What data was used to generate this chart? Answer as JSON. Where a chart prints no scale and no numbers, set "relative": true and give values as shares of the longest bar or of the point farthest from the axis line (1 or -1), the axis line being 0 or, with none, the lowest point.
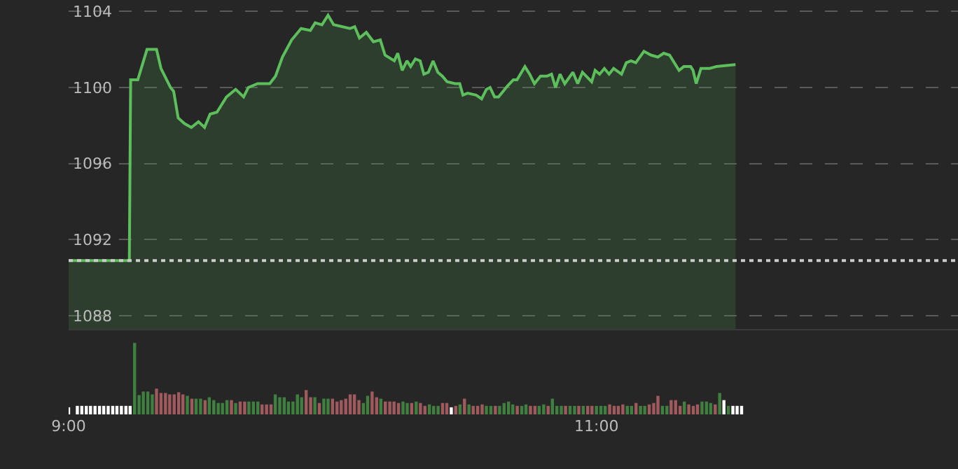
{
  "chart_data": [
    {
      "type": "area",
      "color": "#5cbf5c",
      "x": [
        9.0,
        9.23,
        9.235,
        9.262,
        9.297,
        9.333,
        9.35,
        9.386,
        9.398,
        9.415,
        9.439,
        9.465,
        9.492,
        9.515,
        9.536,
        9.562,
        9.598,
        9.633,
        9.663,
        9.681,
        9.716,
        9.762,
        9.784,
        9.81,
        9.845,
        9.881,
        9.916,
        9.934,
        9.96,
        9.983,
        10.004,
        10.066,
        10.084,
        10.102,
        10.128,
        10.155,
        10.181,
        10.199,
        10.234,
        10.247,
        10.264,
        10.282,
        10.296,
        10.314,
        10.332,
        10.346,
        10.363,
        10.381,
        10.399,
        10.416,
        10.434,
        10.464,
        10.482,
        10.494,
        10.512,
        10.544,
        10.565,
        10.583,
        10.597,
        10.614,
        10.629,
        10.664,
        10.685,
        10.699,
        10.729,
        10.747,
        10.765,
        10.788,
        10.813,
        10.83,
        10.845,
        10.862,
        10.88,
        10.911,
        10.929,
        10.947,
        10.982,
        10.995,
        11.012,
        11.03,
        11.048,
        11.065,
        11.095,
        11.113,
        11.131,
        11.149,
        11.18,
        11.207,
        11.233,
        11.255,
        11.277,
        11.313,
        11.331,
        11.357,
        11.366,
        11.378,
        11.396,
        11.428,
        11.455,
        11.527
      ],
      "values": [
        1090.9,
        1090.9,
        1100.4,
        1100.4,
        1102.0,
        1102.0,
        1101.0,
        1100.0,
        1099.8,
        1098.4,
        1098.1,
        1097.9,
        1098.2,
        1097.9,
        1098.6,
        1098.7,
        1099.5,
        1099.9,
        1099.5,
        1100.0,
        1100.2,
        1100.2,
        1100.6,
        1101.6,
        1102.5,
        1103.1,
        1103.0,
        1103.4,
        1103.3,
        1103.8,
        1103.3,
        1103.1,
        1103.2,
        1102.6,
        1102.9,
        1102.4,
        1102.5,
        1101.7,
        1101.4,
        1101.8,
        1100.9,
        1101.4,
        1101.1,
        1101.5,
        1101.4,
        1100.7,
        1100.8,
        1101.4,
        1100.8,
        1100.6,
        1100.3,
        1100.2,
        1100.2,
        1099.6,
        1099.7,
        1099.6,
        1099.4,
        1099.9,
        1100.0,
        1099.5,
        1099.5,
        1100.1,
        1100.4,
        1100.4,
        1101.1,
        1100.7,
        1100.2,
        1100.6,
        1100.6,
        1100.7,
        1100.0,
        1100.7,
        1100.2,
        1100.8,
        1100.2,
        1100.8,
        1100.3,
        1100.9,
        1100.7,
        1101.0,
        1100.7,
        1101.0,
        1100.7,
        1101.3,
        1101.4,
        1101.3,
        1101.9,
        1101.7,
        1101.6,
        1101.8,
        1101.7,
        1100.9,
        1101.1,
        1101.1,
        1100.9,
        1100.2,
        1101.0,
        1101.0,
        1101.1,
        1101.2
      ],
      "xlim": [
        9.0,
        12.37
      ],
      "ylim": [
        1087.3,
        1104.6
      ],
      "yticks": [
        1088,
        1092,
        1096,
        1100,
        1104
      ],
      "grid": "y",
      "tick_labels": "y",
      "ref_lines": [
        {
          "axis": "y",
          "value": 1090.9,
          "color": "#cccccc",
          "line_style": "dotted"
        }
      ]
    },
    {
      "type": "bar",
      "relative": true,
      "x": [
        9.0,
        9.033,
        9.05,
        9.067,
        9.083,
        9.1,
        9.117,
        9.133,
        9.15,
        9.167,
        9.183,
        9.2,
        9.217,
        9.233,
        9.25,
        9.267,
        9.283,
        9.3,
        9.317,
        9.333,
        9.35,
        9.367,
        9.383,
        9.4,
        9.417,
        9.433,
        9.45,
        9.467,
        9.483,
        9.5,
        9.517,
        9.533,
        9.55,
        9.567,
        9.583,
        9.6,
        9.617,
        9.633,
        9.65,
        9.667,
        9.683,
        9.7,
        9.717,
        9.733,
        9.75,
        9.767,
        9.783,
        9.8,
        9.817,
        9.833,
        9.85,
        9.867,
        9.883,
        9.9,
        9.917,
        9.933,
        9.95,
        9.967,
        9.983,
        10.0,
        10.017,
        10.033,
        10.05,
        10.067,
        10.083,
        10.1,
        10.117,
        10.133,
        10.15,
        10.167,
        10.183,
        10.2,
        10.217,
        10.233,
        10.25,
        10.267,
        10.283,
        10.3,
        10.317,
        10.333,
        10.35,
        10.367,
        10.383,
        10.4,
        10.417,
        10.433,
        10.45,
        10.467,
        10.483,
        10.5,
        10.517,
        10.533,
        10.55,
        10.567,
        10.583,
        10.6,
        10.617,
        10.633,
        10.65,
        10.667,
        10.683,
        10.7,
        10.717,
        10.733,
        10.75,
        10.767,
        10.783,
        10.8,
        10.817,
        10.833,
        10.85,
        10.867,
        10.883,
        10.9,
        10.917,
        10.933,
        10.95,
        10.967,
        10.983,
        11.0,
        11.017,
        11.033,
        11.05,
        11.067,
        11.083,
        11.1,
        11.117,
        11.133,
        11.15,
        11.167,
        11.183,
        11.2,
        11.217,
        11.233,
        11.25,
        11.267,
        11.283,
        11.3,
        11.317,
        11.333,
        11.35,
        11.367,
        11.383,
        11.4,
        11.417,
        11.433,
        11.45,
        11.467,
        11.483,
        11.5,
        11.517,
        11.533,
        11.55
      ],
      "values": [
        0.1,
        0.12,
        0.12,
        0.12,
        0.12,
        0.12,
        0.12,
        0.12,
        0.12,
        0.12,
        0.12,
        0.12,
        0.12,
        0.12,
        1.0,
        0.27,
        0.32,
        0.32,
        0.28,
        0.36,
        0.3,
        0.3,
        0.28,
        0.28,
        0.31,
        0.28,
        0.26,
        0.22,
        0.22,
        0.22,
        0.2,
        0.24,
        0.2,
        0.16,
        0.16,
        0.2,
        0.2,
        0.16,
        0.18,
        0.18,
        0.18,
        0.18,
        0.18,
        0.14,
        0.14,
        0.14,
        0.28,
        0.24,
        0.24,
        0.18,
        0.18,
        0.28,
        0.24,
        0.34,
        0.24,
        0.24,
        0.16,
        0.22,
        0.22,
        0.22,
        0.18,
        0.2,
        0.22,
        0.28,
        0.28,
        0.2,
        0.16,
        0.26,
        0.32,
        0.24,
        0.22,
        0.18,
        0.18,
        0.18,
        0.16,
        0.18,
        0.16,
        0.16,
        0.18,
        0.16,
        0.12,
        0.14,
        0.12,
        0.12,
        0.16,
        0.16,
        0.1,
        0.12,
        0.14,
        0.22,
        0.14,
        0.12,
        0.12,
        0.14,
        0.12,
        0.12,
        0.12,
        0.12,
        0.16,
        0.18,
        0.14,
        0.12,
        0.12,
        0.14,
        0.12,
        0.12,
        0.12,
        0.14,
        0.12,
        0.22,
        0.12,
        0.12,
        0.12,
        0.12,
        0.12,
        0.12,
        0.12,
        0.12,
        0.12,
        0.12,
        0.12,
        0.12,
        0.14,
        0.12,
        0.12,
        0.14,
        0.12,
        0.12,
        0.16,
        0.12,
        0.12,
        0.14,
        0.16,
        0.26,
        0.12,
        0.12,
        0.2,
        0.2,
        0.12,
        0.18,
        0.14,
        0.12,
        0.14,
        0.18,
        0.18,
        0.16,
        0.14,
        0.3,
        0.2,
        0.12,
        0.12,
        0.12,
        0.12
      ],
      "colors": [
        "#ffffff",
        "#ffffff",
        "#ffffff",
        "#ffffff",
        "#ffffff",
        "#ffffff",
        "#ffffff",
        "#ffffff",
        "#ffffff",
        "#ffffff",
        "#ffffff",
        "#ffffff",
        "#ffffff",
        "#ffffff",
        "#3f7f3f",
        "#3f7f3f",
        "#3f7f3f",
        "#3f7f3f",
        "#3f7f3f",
        "#a05a5e",
        "#a05a5e",
        "#a05a5e",
        "#a05a5e",
        "#a05a5e",
        "#a05a5e",
        "#a05a5e",
        "#3f7f3f",
        "#a05a5e",
        "#3f7f3f",
        "#3f7f3f",
        "#a05a5e",
        "#3f7f3f",
        "#3f7f3f",
        "#3f7f3f",
        "#3f7f3f",
        "#3f7f3f",
        "#a05a5e",
        "#3f7f3f",
        "#a05a5e",
        "#a05a5e",
        "#3f7f3f",
        "#3f7f3f",
        "#3f7f3f",
        "#a05a5e",
        "#a05a5e",
        "#a05a5e",
        "#3f7f3f",
        "#3f7f3f",
        "#3f7f3f",
        "#3f7f3f",
        "#3f7f3f",
        "#3f7f3f",
        "#3f7f3f",
        "#a05a5e",
        "#a05a5e",
        "#3f7f3f",
        "#a05a5e",
        "#3f7f3f",
        "#3f7f3f",
        "#a05a5e",
        "#a05a5e",
        "#a05a5e",
        "#a05a5e",
        "#a05a5e",
        "#a05a5e",
        "#a05a5e",
        "#3f7f3f",
        "#3f7f3f",
        "#a05a5e",
        "#a05a5e",
        "#3f7f3f",
        "#a05a5e",
        "#a05a5e",
        "#a05a5e",
        "#a05a5e",
        "#3f7f3f",
        "#3f7f3f",
        "#a05a5e",
        "#3f7f3f",
        "#a05a5e",
        "#a05a5e",
        "#3f7f3f",
        "#3f7f3f",
        "#3f7f3f",
        "#a05a5e",
        "#a05a5e",
        "#ffffff",
        "#a05a5e",
        "#3f7f3f",
        "#a05a5e",
        "#3f7f3f",
        "#a05a5e",
        "#a05a5e",
        "#a05a5e",
        "#3f7f3f",
        "#3f7f3f",
        "#a05a5e",
        "#3f7f3f",
        "#3f7f3f",
        "#3f7f3f",
        "#3f7f3f",
        "#a05a5e",
        "#3f7f3f",
        "#3f7f3f",
        "#a05a5e",
        "#a05a5e",
        "#3f7f3f",
        "#3f7f3f",
        "#a05a5e",
        "#3f7f3f",
        "#3f7f3f",
        "#3f7f3f",
        "#a05a5e",
        "#3f7f3f",
        "#3f7f3f",
        "#a05a5e",
        "#3f7f3f",
        "#a05a5e",
        "#a05a5e",
        "#3f7f3f",
        "#3f7f3f",
        "#3f7f3f",
        "#a05a5e",
        "#a05a5e",
        "#a05a5e",
        "#a05a5e",
        "#3f7f3f",
        "#3f7f3f",
        "#a05a5e",
        "#3f7f3f",
        "#3f7f3f",
        "#a05a5e",
        "#a05a5e",
        "#a05a5e",
        "#3f7f3f",
        "#3f7f3f",
        "#a05a5e",
        "#a05a5e",
        "#a05a5e",
        "#3f7f3f",
        "#a05a5e",
        "#a05a5e",
        "#a05a5e",
        "#3f7f3f",
        "#3f7f3f",
        "#3f7f3f",
        "#a05a5e",
        "#3f7f3f",
        "#ffffff",
        "#3f7f3f",
        "#ffffff",
        "#ffffff",
        "#ffffff"
      ],
      "xlim": [
        9.0,
        12.37
      ],
      "xticks": [
        {
          "value": 9,
          "label": "9:00"
        },
        {
          "value": 11,
          "label": "11:00"
        }
      ],
      "tick_labels": "x"
    }
  ]
}
